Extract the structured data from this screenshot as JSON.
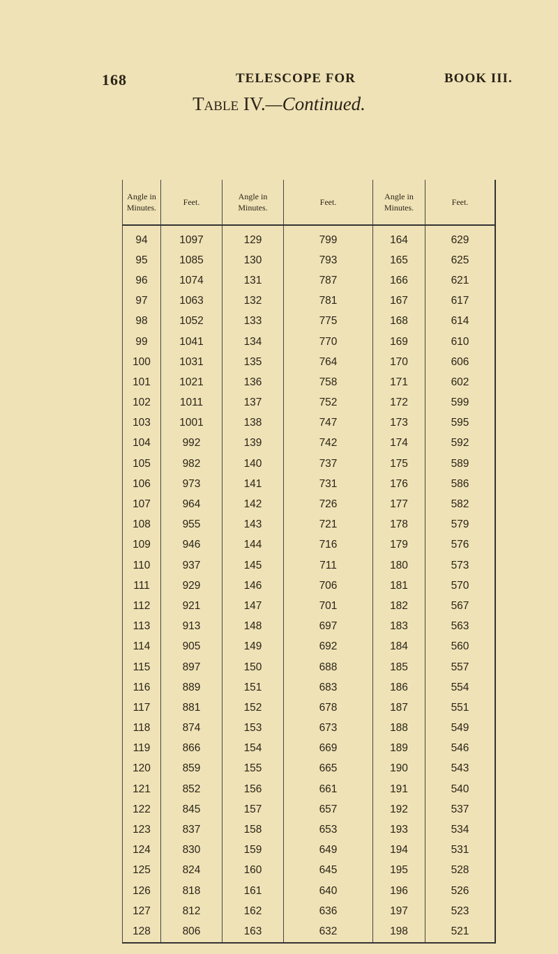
{
  "page": {
    "number": "168",
    "running_title": "TELESCOPE FOR",
    "book": "BOOK III."
  },
  "title": {
    "main": "Table IV.",
    "cont": "—Continued."
  },
  "headers": [
    "Angle in Minutes.",
    "Feet.",
    "Angle in Minutes.",
    "Feet.",
    "Angle in Minutes.",
    "Feet."
  ],
  "rows": [
    [
      "94",
      "1097",
      "129",
      "799",
      "164",
      "629"
    ],
    [
      "95",
      "1085",
      "130",
      "793",
      "165",
      "625"
    ],
    [
      "96",
      "1074",
      "131",
      "787",
      "166",
      "621"
    ],
    [
      "97",
      "1063",
      "132",
      "781",
      "167",
      "617"
    ],
    [
      "98",
      "1052",
      "133",
      "775",
      "168",
      "614"
    ],
    [
      "99",
      "1041",
      "134",
      "770",
      "169",
      "610"
    ],
    [
      "100",
      "1031",
      "135",
      "764",
      "170",
      "606"
    ],
    [
      "101",
      "1021",
      "136",
      "758",
      "171",
      "602"
    ],
    [
      "102",
      "1011",
      "137",
      "752",
      "172",
      "599"
    ],
    [
      "103",
      "1001",
      "138",
      "747",
      "173",
      "595"
    ],
    [
      "104",
      "992",
      "139",
      "742",
      "174",
      "592"
    ],
    [
      "105",
      "982",
      "140",
      "737",
      "175",
      "589"
    ],
    [
      "106",
      "973",
      "141",
      "731",
      "176",
      "586"
    ],
    [
      "107",
      "964",
      "142",
      "726",
      "177",
      "582"
    ],
    [
      "108",
      "955",
      "143",
      "721",
      "178",
      "579"
    ],
    [
      "109",
      "946",
      "144",
      "716",
      "179",
      "576"
    ],
    [
      "110",
      "937",
      "145",
      "711",
      "180",
      "573"
    ],
    [
      "111",
      "929",
      "146",
      "706",
      "181",
      "570"
    ],
    [
      "112",
      "921",
      "147",
      "701",
      "182",
      "567"
    ],
    [
      "113",
      "913",
      "148",
      "697",
      "183",
      "563"
    ],
    [
      "114",
      "905",
      "149",
      "692",
      "184",
      "560"
    ],
    [
      "115",
      "897",
      "150",
      "688",
      "185",
      "557"
    ],
    [
      "116",
      "889",
      "151",
      "683",
      "186",
      "554"
    ],
    [
      "117",
      "881",
      "152",
      "678",
      "187",
      "551"
    ],
    [
      "118",
      "874",
      "153",
      "673",
      "188",
      "549"
    ],
    [
      "119",
      "866",
      "154",
      "669",
      "189",
      "546"
    ],
    [
      "120",
      "859",
      "155",
      "665",
      "190",
      "543"
    ],
    [
      "121",
      "852",
      "156",
      "661",
      "191",
      "540"
    ],
    [
      "122",
      "845",
      "157",
      "657",
      "192",
      "537"
    ],
    [
      "123",
      "837",
      "158",
      "653",
      "193",
      "534"
    ],
    [
      "124",
      "830",
      "159",
      "649",
      "194",
      "531"
    ],
    [
      "125",
      "824",
      "160",
      "645",
      "195",
      "528"
    ],
    [
      "126",
      "818",
      "161",
      "640",
      "196",
      "526"
    ],
    [
      "127",
      "812",
      "162",
      "636",
      "197",
      "523"
    ],
    [
      "128",
      "806",
      "163",
      "632",
      "198",
      "521"
    ]
  ]
}
